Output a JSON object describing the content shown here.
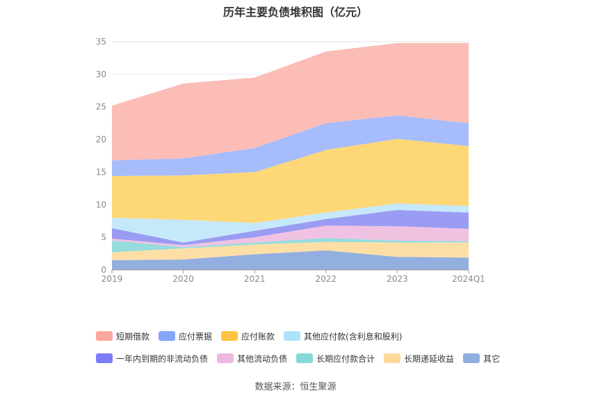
{
  "chart_data": {
    "type": "area",
    "stacked": true,
    "title": "历年主要负债堆积图（亿元）",
    "categories": [
      "2019",
      "2020",
      "2021",
      "2022",
      "2023",
      "2024Q1"
    ],
    "ylim": [
      0,
      35
    ],
    "yticks": [
      0,
      5,
      10,
      15,
      20,
      25,
      30,
      35
    ],
    "grid": true,
    "legend_position": "bottom",
    "series": [
      {
        "name": "其它",
        "color": "#93afe0",
        "values": [
          1.5,
          1.6,
          2.4,
          3.0,
          2.0,
          1.9
        ]
      },
      {
        "name": "长期递延收益",
        "color": "#fddfa6",
        "values": [
          1.2,
          1.7,
          1.5,
          1.3,
          2.2,
          2.3
        ]
      },
      {
        "name": "长期应付款合计",
        "color": "#96dcdc",
        "values": [
          1.8,
          0.2,
          0.3,
          0.6,
          0.3,
          0.2
        ]
      },
      {
        "name": "其他流动负债",
        "color": "#f0c2e2",
        "values": [
          0.3,
          0.3,
          0.8,
          1.9,
          2.2,
          1.9
        ]
      },
      {
        "name": "一年内到期的非流动负债",
        "color": "#9a9cf3",
        "values": [
          1.6,
          0.4,
          1.0,
          1.0,
          2.5,
          2.5
        ]
      },
      {
        "name": "其他应付款(含利息和股利)",
        "color": "#c6e8fb",
        "values": [
          1.6,
          3.5,
          1.2,
          1.0,
          1.0,
          1.0
        ]
      },
      {
        "name": "应付账款",
        "color": "#fed776",
        "values": [
          6.4,
          6.8,
          7.8,
          9.6,
          9.9,
          9.2
        ]
      },
      {
        "name": "应付票据",
        "color": "#a6bcfb",
        "values": [
          2.4,
          2.6,
          3.7,
          4.1,
          3.6,
          3.5
        ]
      },
      {
        "name": "短期借款",
        "color": "#fbbdb6",
        "values": [
          8.4,
          11.5,
          10.8,
          11.0,
          11.1,
          12.3
        ]
      }
    ]
  },
  "legend": {
    "row1": [
      {
        "label": "短期借款",
        "color": "#fba99e"
      },
      {
        "label": "应付票据",
        "color": "#87a6fa"
      },
      {
        "label": "应付账款",
        "color": "#fdc541"
      },
      {
        "label": "其他应付款(含利息和股利)",
        "color": "#aee3fa"
      }
    ],
    "row2": [
      {
        "label": "一年内到期的非流动负债",
        "color": "#7c7cf7"
      },
      {
        "label": "其他流动负债",
        "color": "#edb7df"
      },
      {
        "label": "长期应付款合计",
        "color": "#86d9d8"
      },
      {
        "label": "长期递延收益",
        "color": "#fdd89a"
      },
      {
        "label": "其它",
        "color": "#8eaedf"
      }
    ]
  },
  "source": "数据来源：恒生聚源"
}
